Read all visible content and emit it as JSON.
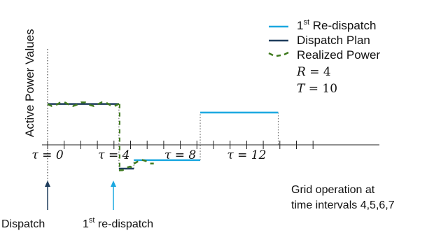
{
  "chart_data": {
    "type": "line",
    "ylabel": "Active Power  Values",
    "x_ticks": [
      {
        "tau": 0,
        "label": "τ = 0"
      },
      {
        "tau": 4,
        "label": "τ = 4"
      },
      {
        "tau": 8,
        "label": "τ = 8"
      },
      {
        "tau": 12,
        "label": "τ = 12"
      }
    ],
    "x_range": [
      0,
      16
    ],
    "legend": [
      {
        "key": "redispatch",
        "sup": "st",
        "pre": "1",
        "post": " Re-dispatch",
        "color": "#1ba8e0",
        "style": "solid"
      },
      {
        "key": "plan",
        "label": "Dispatch Plan",
        "color": "#1f3d5c",
        "style": "solid"
      },
      {
        "key": "realized",
        "label": "Realized Power",
        "color": "#3f7a1e",
        "style": "dashed"
      }
    ],
    "params": [
      {
        "name": "R",
        "value": "4"
      },
      {
        "name": "T",
        "value": "10"
      }
    ],
    "series": [
      {
        "name": "Dispatch Plan",
        "color": "#1f3d5c",
        "segments": [
          {
            "from": 0,
            "to": 4.3,
            "value": 0.72
          },
          {
            "from": 4.3,
            "to": 5.2,
            "value": -0.42
          }
        ]
      },
      {
        "name": "1st Re-dispatch",
        "color": "#1ba8e0",
        "segments": [
          {
            "from": 5.2,
            "to": 9.2,
            "value": -0.27
          },
          {
            "from": 9.2,
            "to": 13.9,
            "value": 0.57
          }
        ]
      },
      {
        "name": "Realized Power",
        "color": "#3f7a1e",
        "segments": [
          {
            "from": 0,
            "to": 4.3,
            "value": 0.72
          },
          {
            "from": 4.3,
            "to": 5.2,
            "value": -0.42
          },
          {
            "from": 5.2,
            "to": 6.4,
            "value": -0.3
          }
        ]
      }
    ]
  },
  "annotations": {
    "dispatch": "Dispatch",
    "redispatch_pre": "1",
    "redispatch_sup": "st",
    "redispatch_post": " re-dispatch",
    "grid_line1": "Grid operation at",
    "grid_line2": "time intervals  4,5,6,7"
  }
}
